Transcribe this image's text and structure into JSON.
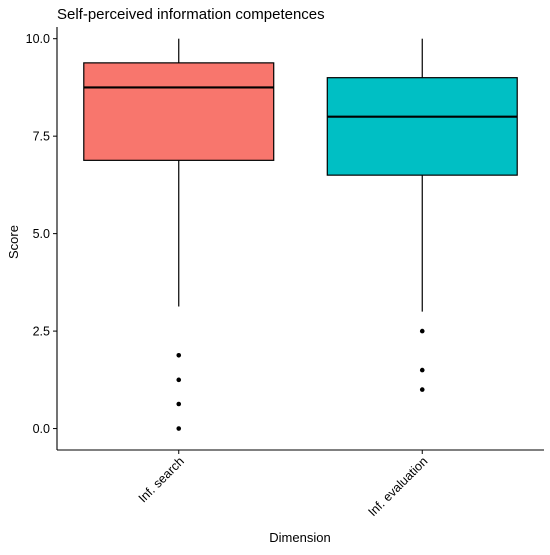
{
  "chart_data": {
    "type": "box",
    "title": "Self-perceived information competences",
    "xlabel": "Dimension",
    "ylabel": "Score",
    "ylim": [
      -0.55,
      10.3
    ],
    "yticks": [
      0.0,
      2.5,
      5.0,
      7.5,
      10.0
    ],
    "ytick_labels": [
      "0.0",
      "2.5",
      "5.0",
      "7.5",
      "10.0"
    ],
    "grid": false,
    "legend": "none",
    "categories": [
      "Inf. search",
      "Inf. evaluation"
    ],
    "boxes": [
      {
        "category": "Inf. search",
        "fill": "#F8766D",
        "whisker_low": 3.13,
        "q1": 6.88,
        "median": 8.75,
        "q3": 9.38,
        "whisker_high": 10.0,
        "outliers": [
          1.88,
          1.25,
          0.63,
          0.0
        ]
      },
      {
        "category": "Inf. evaluation",
        "fill": "#00BFC4",
        "whisker_low": 3.0,
        "q1": 6.5,
        "median": 8.0,
        "q3": 9.0,
        "whisker_high": 10.0,
        "outliers": [
          2.5,
          1.5,
          1.0
        ]
      }
    ]
  }
}
